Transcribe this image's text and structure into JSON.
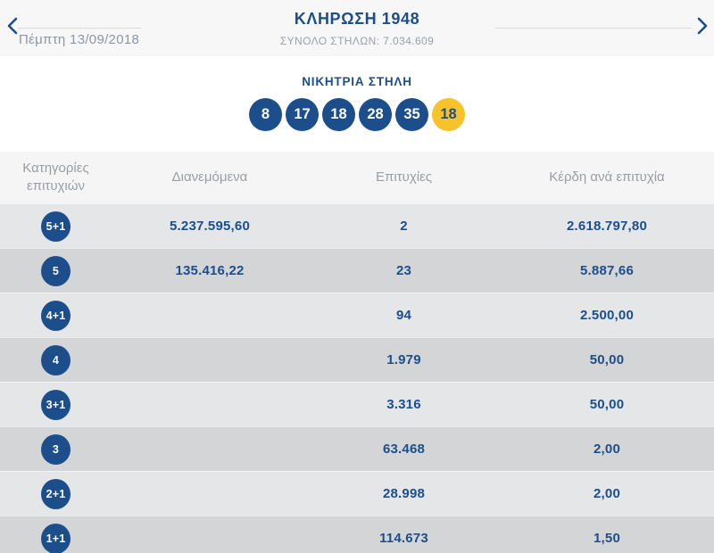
{
  "header": {
    "title": "ΚΛΗΡΩΣΗ 1948",
    "total_columns": "ΣΥΝΟΛΟ ΣΤΗΛΩΝ: 7.034.609",
    "date": "Πέμπτη 13/09/2018",
    "prev_icon": "chevron-left",
    "next_icon": "chevron-right"
  },
  "winning": {
    "title": "ΝΙΚΗΤΡΙΑ ΣΤΗΛΗ",
    "numbers": [
      "8",
      "17",
      "18",
      "28",
      "35"
    ],
    "joker_number": "18"
  },
  "table": {
    "headers": [
      "Κατηγορίες επιτυχιών",
      "Διανεμόμενα",
      "Επιτυχίες",
      "Κέρδη ανά επιτυχία"
    ],
    "rows": [
      {
        "category": "5+1",
        "distributed": "5.237.595,60",
        "wins": "2",
        "winnings_per_win": "2.618.797,80"
      },
      {
        "category": "5",
        "distributed": "135.416,22",
        "wins": "23",
        "winnings_per_win": "5.887,66"
      },
      {
        "category": "4+1",
        "distributed": "",
        "wins": "94",
        "winnings_per_win": "2.500,00"
      },
      {
        "category": "4",
        "distributed": "",
        "wins": "1.979",
        "winnings_per_win": "50,00"
      },
      {
        "category": "3+1",
        "distributed": "",
        "wins": "3.316",
        "winnings_per_win": "50,00"
      },
      {
        "category": "3",
        "distributed": "",
        "wins": "63.468",
        "winnings_per_win": "2,00"
      },
      {
        "category": "2+1",
        "distributed": "",
        "wins": "28.998",
        "winnings_per_win": "2,00"
      },
      {
        "category": "1+1",
        "distributed": "",
        "wins": "114.673",
        "winnings_per_win": "1,50"
      }
    ]
  },
  "colors": {
    "brand_blue": "#1d4e8c",
    "joker_yellow": "#f6c32a",
    "row_light": "#e4e6e8",
    "row_dark": "#d3d5d7",
    "header_gray_text": "#9a9ea3"
  }
}
